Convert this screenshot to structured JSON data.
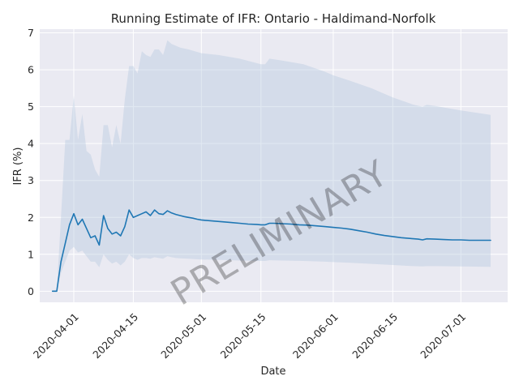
{
  "chart_data": {
    "type": "line",
    "title": "Running Estimate of IFR: Ontario - Haldimand-Norfolk",
    "xlabel": "Date",
    "ylabel": "IFR (%)",
    "watermark": "PRELIMINARY",
    "grid": true,
    "xlim": [
      "2020-03-24",
      "2020-07-12"
    ],
    "ylim": [
      -0.3,
      7.1
    ],
    "yticks": [
      0,
      1,
      2,
      3,
      4,
      5,
      6,
      7
    ],
    "xticks": [
      "2020-04-01",
      "2020-04-15",
      "2020-05-01",
      "2020-05-15",
      "2020-06-01",
      "2020-06-15",
      "2020-07-01"
    ],
    "colors": {
      "line": "#1f77b4",
      "band": "#b0c4de",
      "background": "#eaeaf2",
      "grid": "#ffffff"
    },
    "series": [
      {
        "points": [
          [
            "2020-03-27",
            0.0
          ],
          [
            "2020-03-28",
            0.0
          ],
          [
            "2020-03-29",
            0.8
          ],
          [
            "2020-03-30",
            1.3
          ],
          [
            "2020-03-31",
            1.8
          ],
          [
            "2020-04-01",
            2.1
          ],
          [
            "2020-04-02",
            1.8
          ],
          [
            "2020-04-03",
            1.95
          ],
          [
            "2020-04-04",
            1.7
          ],
          [
            "2020-04-05",
            1.45
          ],
          [
            "2020-04-06",
            1.5
          ],
          [
            "2020-04-07",
            1.25
          ],
          [
            "2020-04-08",
            2.05
          ],
          [
            "2020-04-09",
            1.7
          ],
          [
            "2020-04-10",
            1.55
          ],
          [
            "2020-04-11",
            1.6
          ],
          [
            "2020-04-12",
            1.5
          ],
          [
            "2020-04-13",
            1.75
          ],
          [
            "2020-04-14",
            2.2
          ],
          [
            "2020-04-15",
            2.0
          ],
          [
            "2020-04-16",
            2.05
          ],
          [
            "2020-04-17",
            2.1
          ],
          [
            "2020-04-18",
            2.15
          ],
          [
            "2020-04-19",
            2.05
          ],
          [
            "2020-04-20",
            2.2
          ],
          [
            "2020-04-21",
            2.1
          ],
          [
            "2020-04-22",
            2.08
          ],
          [
            "2020-04-23",
            2.18
          ],
          [
            "2020-04-24",
            2.12
          ],
          [
            "2020-04-25",
            2.08
          ],
          [
            "2020-04-26",
            2.05
          ],
          [
            "2020-04-27",
            2.02
          ],
          [
            "2020-04-28",
            2.0
          ],
          [
            "2020-04-29",
            1.98
          ],
          [
            "2020-04-30",
            1.95
          ],
          [
            "2020-05-01",
            1.93
          ],
          [
            "2020-05-02",
            1.92
          ],
          [
            "2020-05-04",
            1.9
          ],
          [
            "2020-05-06",
            1.88
          ],
          [
            "2020-05-08",
            1.86
          ],
          [
            "2020-05-10",
            1.84
          ],
          [
            "2020-05-12",
            1.82
          ],
          [
            "2020-05-14",
            1.81
          ],
          [
            "2020-05-15",
            1.8
          ],
          [
            "2020-05-16",
            1.8
          ],
          [
            "2020-05-17",
            1.84
          ],
          [
            "2020-05-18",
            1.84
          ],
          [
            "2020-05-20",
            1.83
          ],
          [
            "2020-05-22",
            1.82
          ],
          [
            "2020-05-24",
            1.8
          ],
          [
            "2020-05-26",
            1.79
          ],
          [
            "2020-05-28",
            1.77
          ],
          [
            "2020-05-30",
            1.75
          ],
          [
            "2020-06-01",
            1.73
          ],
          [
            "2020-06-03",
            1.71
          ],
          [
            "2020-06-05",
            1.68
          ],
          [
            "2020-06-07",
            1.64
          ],
          [
            "2020-06-09",
            1.6
          ],
          [
            "2020-06-11",
            1.55
          ],
          [
            "2020-06-13",
            1.51
          ],
          [
            "2020-06-15",
            1.48
          ],
          [
            "2020-06-17",
            1.45
          ],
          [
            "2020-06-19",
            1.43
          ],
          [
            "2020-06-21",
            1.41
          ],
          [
            "2020-06-22",
            1.39
          ],
          [
            "2020-06-23",
            1.42
          ],
          [
            "2020-06-25",
            1.41
          ],
          [
            "2020-06-27",
            1.4
          ],
          [
            "2020-06-29",
            1.39
          ],
          [
            "2020-07-01",
            1.39
          ],
          [
            "2020-07-03",
            1.38
          ],
          [
            "2020-07-05",
            1.38
          ],
          [
            "2020-07-07",
            1.38
          ],
          [
            "2020-07-08",
            1.38
          ]
        ],
        "band": [
          [
            "2020-03-28",
            0.0,
            0.0
          ],
          [
            "2020-03-29",
            0.5,
            2.0
          ],
          [
            "2020-03-30",
            0.8,
            4.1
          ],
          [
            "2020-03-31",
            1.1,
            4.1
          ],
          [
            "2020-04-01",
            1.2,
            5.3
          ],
          [
            "2020-04-02",
            1.05,
            4.1
          ],
          [
            "2020-04-03",
            1.1,
            4.8
          ],
          [
            "2020-04-04",
            0.95,
            3.8
          ],
          [
            "2020-04-05",
            0.8,
            3.7
          ],
          [
            "2020-04-06",
            0.8,
            3.3
          ],
          [
            "2020-04-07",
            0.65,
            3.1
          ],
          [
            "2020-04-08",
            1.0,
            4.5
          ],
          [
            "2020-04-09",
            0.85,
            4.5
          ],
          [
            "2020-04-10",
            0.75,
            3.9
          ],
          [
            "2020-04-11",
            0.8,
            4.5
          ],
          [
            "2020-04-12",
            0.7,
            4.0
          ],
          [
            "2020-04-13",
            0.8,
            5.2
          ],
          [
            "2020-04-14",
            1.0,
            6.1
          ],
          [
            "2020-04-15",
            0.9,
            6.1
          ],
          [
            "2020-04-16",
            0.85,
            5.9
          ],
          [
            "2020-04-17",
            0.9,
            6.5
          ],
          [
            "2020-04-18",
            0.9,
            6.4
          ],
          [
            "2020-04-19",
            0.88,
            6.35
          ],
          [
            "2020-04-20",
            0.92,
            6.55
          ],
          [
            "2020-04-21",
            0.9,
            6.55
          ],
          [
            "2020-04-22",
            0.88,
            6.4
          ],
          [
            "2020-04-23",
            0.95,
            6.8
          ],
          [
            "2020-04-24",
            0.92,
            6.7
          ],
          [
            "2020-04-25",
            0.9,
            6.65
          ],
          [
            "2020-04-26",
            0.89,
            6.6
          ],
          [
            "2020-04-28",
            0.88,
            6.55
          ],
          [
            "2020-05-01",
            0.86,
            6.45
          ],
          [
            "2020-05-05",
            0.85,
            6.4
          ],
          [
            "2020-05-10",
            0.83,
            6.3
          ],
          [
            "2020-05-15",
            0.82,
            6.15
          ],
          [
            "2020-05-16",
            0.82,
            6.15
          ],
          [
            "2020-05-17",
            0.84,
            6.3
          ],
          [
            "2020-05-20",
            0.83,
            6.25
          ],
          [
            "2020-05-25",
            0.82,
            6.15
          ],
          [
            "2020-05-30",
            0.8,
            5.95
          ],
          [
            "2020-06-01",
            0.79,
            5.85
          ],
          [
            "2020-06-05",
            0.77,
            5.7
          ],
          [
            "2020-06-10",
            0.74,
            5.5
          ],
          [
            "2020-06-15",
            0.71,
            5.25
          ],
          [
            "2020-06-20",
            0.68,
            5.05
          ],
          [
            "2020-06-22",
            0.67,
            5.0
          ],
          [
            "2020-06-23",
            0.68,
            5.05
          ],
          [
            "2020-06-25",
            0.68,
            5.02
          ],
          [
            "2020-07-01",
            0.67,
            4.9
          ],
          [
            "2020-07-08",
            0.66,
            4.78
          ]
        ]
      }
    ]
  }
}
